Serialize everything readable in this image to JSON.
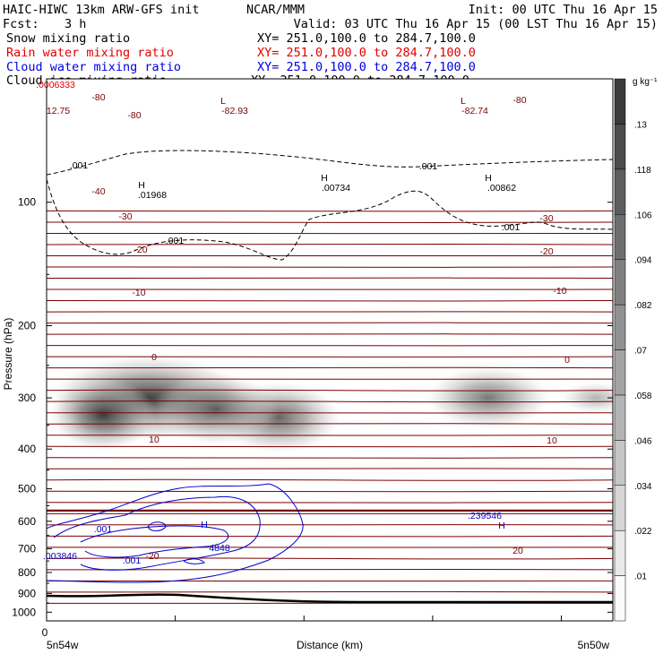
{
  "header": {
    "title": "HAIC-HIWC 13km ARW-GFS init",
    "org": "NCAR/MMM",
    "init": "Init: 00 UTC Thu 16 Apr 15",
    "fcst_label": "Fcst:",
    "fcst_value": "3 h",
    "valid": "Valid: 03 UTC Thu 16 Apr 15 (00 LST Thu 16 Apr 15)"
  },
  "fields": [
    {
      "name": "Snow mixing ratio",
      "xy": "XY= 251.0,100.0 to 284.7,100.0",
      "color": "#000000"
    },
    {
      "name": "Rain water mixing ratio",
      "xy": "XY= 251.0,100.0 to 284.7,100.0",
      "color": "#e00000"
    },
    {
      "name": "Cloud water mixing ratio",
      "xy": "XY= 251.0,100.0 to 284.7,100.0",
      "color": "#0000e0"
    },
    {
      "name": "Cloud ice mixing ratio",
      "xy": "XY= 251.0,100.0 to 284.7,100.0",
      "color": "#000000"
    }
  ],
  "colors": {
    "temperature": "#7a0000",
    "temperature_zero": "#7a0000",
    "cloud_water": "#0000cc",
    "rain": "#e00000",
    "ice": "#000000",
    "terrain": "#000000",
    "snow_shade_max": "#3a3a3a"
  },
  "chart_data": {
    "type": "heatmap",
    "xlabel": "Distance (km)",
    "ylabel": "Pressure (hPa)",
    "x_start_label": "0",
    "x_left_label": "5n54w",
    "x_right_label": "5n50w",
    "ylim": [
      1050,
      50
    ],
    "y_scale": "log",
    "yticks": [
      100,
      200,
      300,
      400,
      500,
      600,
      700,
      800,
      900,
      1000
    ],
    "colorbar": {
      "unit": "g kg⁻¹",
      "levels": [
        ".01",
        ".022",
        ".034",
        ".046",
        ".058",
        ".07",
        ".082",
        ".094",
        ".106",
        ".118",
        ".13"
      ],
      "values": [
        0.01,
        0.022,
        0.034,
        0.046,
        0.058,
        0.07,
        0.082,
        0.094,
        0.106,
        0.118,
        0.13
      ]
    },
    "snow_maxima": [
      {
        "x": 0.18,
        "p": 300,
        "value": 0.13
      },
      {
        "x": 0.41,
        "p": 335,
        "value": 0.09
      },
      {
        "x": 0.78,
        "p": 300,
        "value": 0.07
      }
    ],
    "temperature_isotherms": [
      {
        "label": "-80",
        "levels": [
          105,
          116
        ]
      },
      {
        "label": "-40",
        "levels": [
          265
        ]
      },
      {
        "label": "-30",
        "levels": [
          310
        ]
      },
      {
        "label": "-20",
        "levels": [
          368
        ]
      },
      {
        "label": "-10",
        "levels": [
          455
        ]
      },
      {
        "label": "0",
        "levels": [
          565
        ]
      },
      {
        "label": "10",
        "levels": [
          718
        ]
      },
      {
        "label": "20",
        "levels": [
          928
        ]
      }
    ],
    "annotations": [
      {
        "text": "-80",
        "color": "temperature"
      },
      {
        "text": "-80",
        "color": "temperature"
      },
      {
        "text": "-80",
        "color": "temperature"
      },
      {
        "text": "L",
        "color": "temperature"
      },
      {
        "text": "L",
        "color": "temperature"
      },
      {
        "text": "12.75",
        "color": "temperature"
      },
      {
        "text": "-82.93",
        "color": "temperature"
      },
      {
        "text": "-82.74",
        "color": "temperature"
      },
      {
        "text": "-40",
        "color": "temperature"
      },
      {
        "text": "-30",
        "color": "temperature"
      },
      {
        "text": "-30",
        "color": "temperature"
      },
      {
        "text": "-20",
        "color": "temperature"
      },
      {
        "text": "-20",
        "color": "temperature"
      },
      {
        "text": "-10",
        "color": "temperature"
      },
      {
        "text": "-10",
        "color": "temperature"
      },
      {
        "text": "0",
        "color": "temperature"
      },
      {
        "text": "0",
        "color": "temperature"
      },
      {
        "text": "10",
        "color": "temperature"
      },
      {
        "text": "10",
        "color": "temperature"
      },
      {
        "text": "20",
        "color": "temperature"
      },
      {
        "text": "-20",
        "color": "temperature"
      },
      {
        "text": ".001",
        "color": "ice"
      },
      {
        "text": ".001",
        "color": "ice"
      },
      {
        "text": ".001",
        "color": "ice"
      },
      {
        "text": ".001",
        "color": "ice"
      },
      {
        "text": "H",
        "color": "ice"
      },
      {
        "text": ".01968",
        "color": "ice"
      },
      {
        "text": "H",
        "color": "ice"
      },
      {
        "text": ".00734",
        "color": "ice"
      },
      {
        "text": "H",
        "color": "ice"
      },
      {
        "text": ".00862",
        "color": "ice"
      },
      {
        "text": ".001",
        "color": "cloud_water"
      },
      {
        "text": ".001",
        "color": "cloud_water"
      },
      {
        "text": "H",
        "color": "cloud_water"
      },
      {
        "text": ".239546",
        "color": "cloud_water"
      },
      {
        "text": "H",
        "color": "cloud_water"
      },
      {
        "text": ".003846",
        "color": "cloud_water"
      },
      {
        "text": "4848",
        "color": "cloud_water"
      },
      {
        "text": ".0006333",
        "color": "rain"
      }
    ]
  }
}
